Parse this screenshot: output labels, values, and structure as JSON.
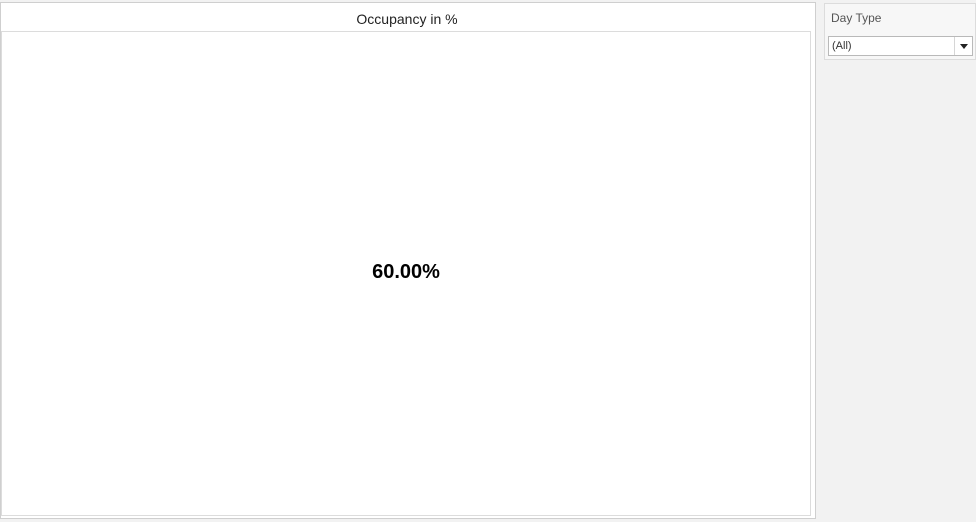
{
  "viz": {
    "title": "Occupancy in %",
    "kpi_value": "60.00%"
  },
  "filter": {
    "title": "Day Type",
    "selected": "(All)"
  }
}
